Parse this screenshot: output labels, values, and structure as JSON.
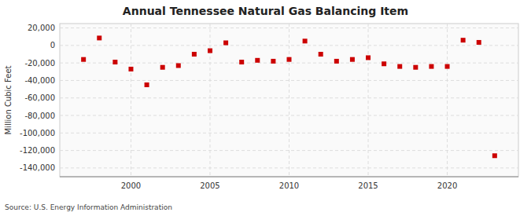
{
  "chart_data": {
    "type": "scatter",
    "title": "Annual Tennessee Natural Gas Balancing Item",
    "ylabel": "Million Cubic Feet",
    "source": "Source: U.S. Energy Information Administration",
    "x": [
      1997,
      1998,
      1999,
      2000,
      2001,
      2002,
      2003,
      2004,
      2005,
      2006,
      2007,
      2008,
      2009,
      2010,
      2011,
      2012,
      2013,
      2014,
      2015,
      2016,
      2017,
      2018,
      2019,
      2020,
      2021,
      2022,
      2023
    ],
    "values": [
      -16000,
      8500,
      -19000,
      -27000,
      -45000,
      -25000,
      -23000,
      -10000,
      -6000,
      3000,
      -19000,
      -17000,
      -18000,
      -16000,
      5000,
      -10000,
      -18000,
      -16000,
      -14000,
      -21000,
      -24000,
      -25000,
      -24000,
      -24000,
      6000,
      3500,
      -126000
    ],
    "color": "#cc0000",
    "marker": "square",
    "xlim": [
      1995.5,
      2024.5
    ],
    "xticks": [
      2000,
      2005,
      2010,
      2015,
      2020
    ],
    "ylim": [
      -150000,
      25000
    ],
    "yticks": [
      {
        "value": 20000,
        "label": "20,000"
      },
      0,
      {
        "value": -20000,
        "label": "-20,000"
      },
      {
        "value": -40000,
        "label": "-40,000"
      },
      {
        "value": -60000,
        "label": "-60,000"
      },
      {
        "value": -80000,
        "label": "-80,000"
      },
      {
        "value": -100000,
        "label": "-100,000"
      },
      {
        "value": -120000,
        "label": "-120,000"
      },
      {
        "value": -140000,
        "label": "-140,000"
      }
    ],
    "grid": true
  }
}
